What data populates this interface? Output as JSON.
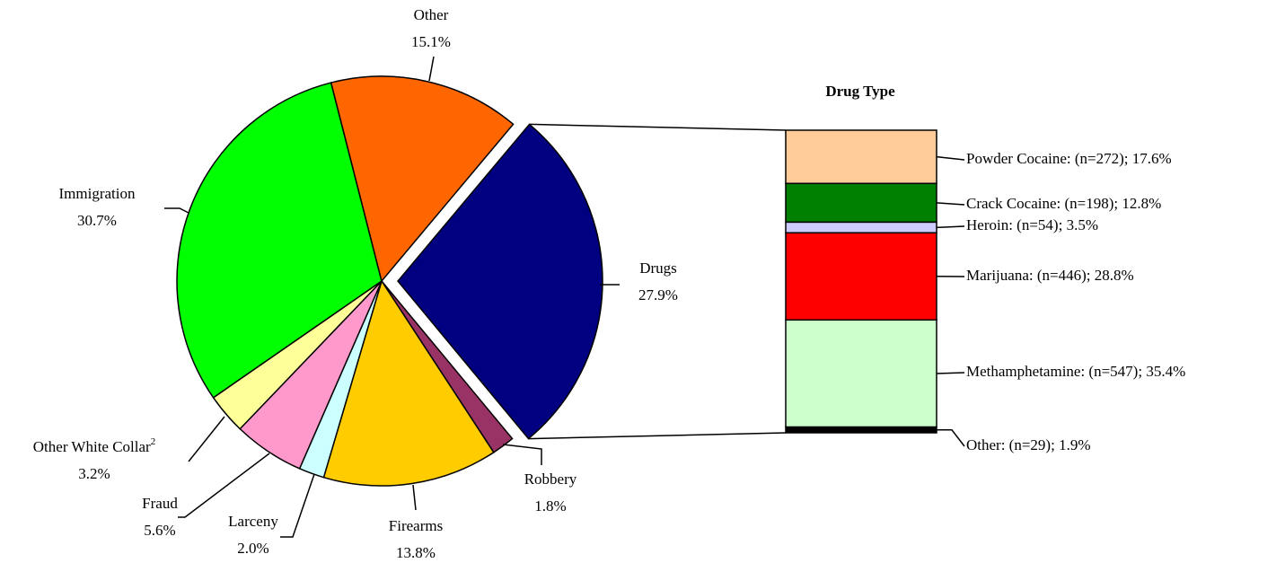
{
  "chart_data": [
    {
      "type": "pie",
      "categories": [
        "Drugs",
        "Robbery",
        "Firearms",
        "Larceny",
        "Fraud",
        "Other White Collar",
        "Immigration",
        "Other"
      ],
      "category_footnotes": [
        null,
        null,
        null,
        null,
        null,
        "2",
        null,
        null
      ],
      "values": [
        27.9,
        1.8,
        13.8,
        2.0,
        5.6,
        3.2,
        30.7,
        15.1
      ],
      "value_labels": [
        "27.9%",
        "1.8%",
        "13.8%",
        "2.0%",
        "5.6%",
        "3.2%",
        "30.7%",
        "15.1%"
      ],
      "colors": [
        "#000080",
        "#993366",
        "#FFCC00",
        "#CCFFFF",
        "#FF99CC",
        "#FFFF99",
        "#00FF00",
        "#FF6600"
      ]
    },
    {
      "type": "stacked-bar",
      "title": "Drug Type",
      "values": [
        17.6,
        12.8,
        3.5,
        28.8,
        35.4,
        1.9
      ],
      "value_labels": [
        "Powder Cocaine: (n=272); 17.6%",
        "Crack Cocaine: (n=198); 12.8%",
        "Heroin: (n=54); 3.5%",
        "Marijuana: (n=446); 28.8%",
        "Methamphetamine: (n=547); 35.4%",
        "Other: (n=29); 1.9%"
      ],
      "colors": [
        "#FFCC99",
        "#008000",
        "#CCCCFF",
        "#FF0000",
        "#CCFFCC",
        "#000000"
      ]
    }
  ]
}
